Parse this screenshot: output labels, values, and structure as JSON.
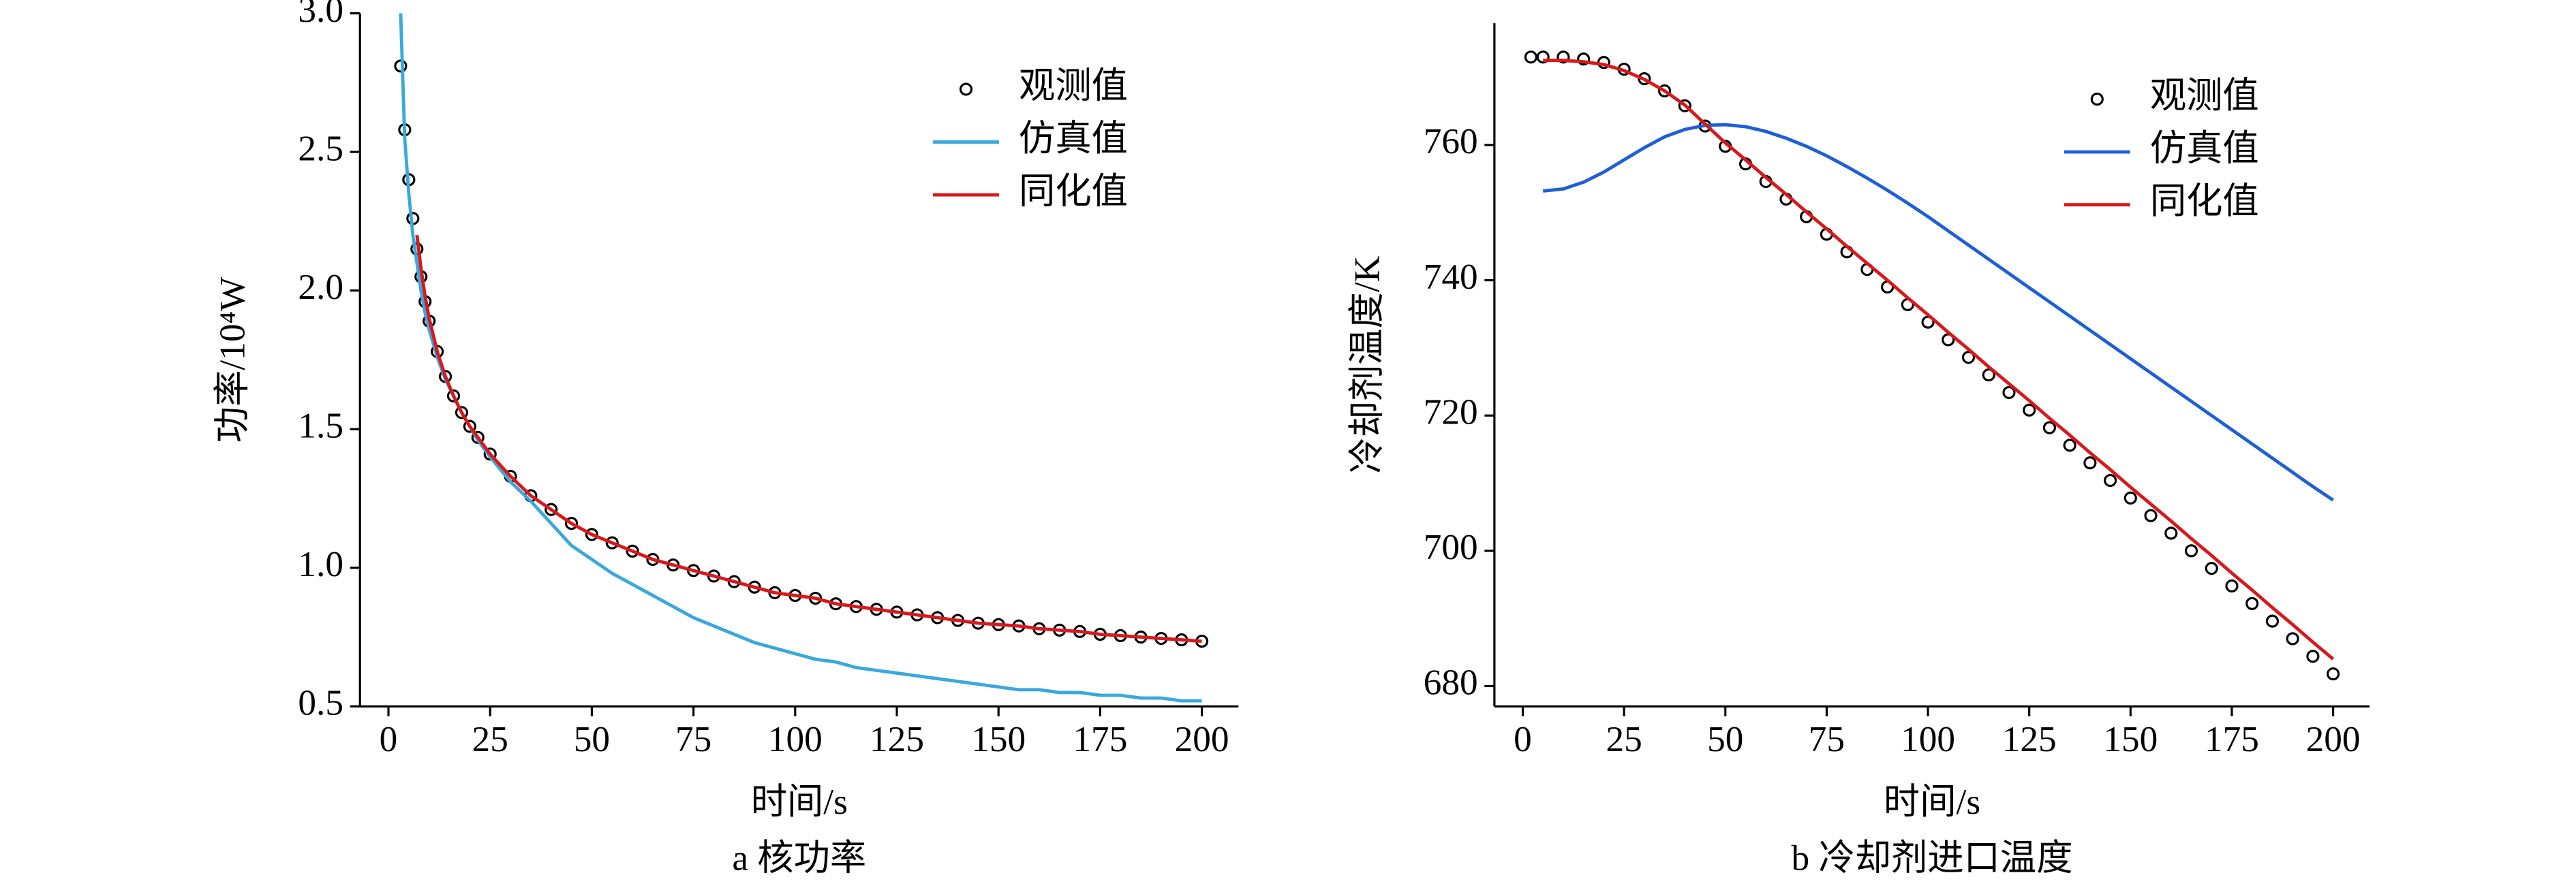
{
  "chart_data": [
    {
      "type": "line",
      "title": "a 核功率",
      "xlabel": "时间/s",
      "ylabel": "功率/10⁴W",
      "x": [
        3,
        4,
        5,
        6,
        7,
        8,
        9,
        10,
        12,
        14,
        16,
        18,
        20,
        22,
        25,
        30,
        35,
        40,
        45,
        50,
        55,
        60,
        65,
        70,
        75,
        80,
        85,
        90,
        95,
        100,
        105,
        110,
        115,
        120,
        125,
        130,
        135,
        140,
        145,
        150,
        155,
        160,
        165,
        170,
        175,
        180,
        185,
        190,
        195,
        200
      ],
      "series": [
        {
          "name": "观测值",
          "color": "#000000",
          "mode": "markers",
          "values": [
            2.81,
            2.58,
            2.4,
            2.26,
            2.15,
            2.05,
            1.96,
            1.89,
            1.78,
            1.69,
            1.62,
            1.56,
            1.51,
            1.47,
            1.41,
            1.33,
            1.26,
            1.21,
            1.16,
            1.12,
            1.09,
            1.06,
            1.03,
            1.01,
            0.99,
            0.97,
            0.95,
            0.93,
            0.91,
            0.9,
            0.89,
            0.87,
            0.86,
            0.85,
            0.84,
            0.83,
            0.82,
            0.81,
            0.8,
            0.795,
            0.79,
            0.78,
            0.775,
            0.77,
            0.76,
            0.755,
            0.75,
            0.745,
            0.74,
            0.735
          ]
        },
        {
          "name": "仿真值",
          "color": "#3aa8dc",
          "mode": "line",
          "values": [
            3.0,
            2.55,
            2.35,
            2.2,
            2.1,
            2.0,
            1.92,
            1.86,
            1.76,
            1.68,
            1.62,
            1.56,
            1.51,
            1.46,
            1.4,
            1.31,
            1.24,
            1.16,
            1.08,
            1.03,
            0.98,
            0.94,
            0.9,
            0.86,
            0.82,
            0.79,
            0.76,
            0.73,
            0.71,
            0.69,
            0.67,
            0.66,
            0.64,
            0.63,
            0.62,
            0.61,
            0.6,
            0.59,
            0.58,
            0.57,
            0.56,
            0.56,
            0.55,
            0.55,
            0.54,
            0.54,
            0.53,
            0.53,
            0.52,
            0.52
          ]
        },
        {
          "name": "同化值",
          "color": "#d7191c",
          "mode": "line",
          "values": [
            null,
            null,
            null,
            null,
            2.2,
            2.08,
            1.98,
            1.9,
            1.78,
            1.69,
            1.62,
            1.56,
            1.51,
            1.47,
            1.41,
            1.33,
            1.26,
            1.21,
            1.16,
            1.12,
            1.09,
            1.06,
            1.03,
            1.01,
            0.99,
            0.97,
            0.95,
            0.93,
            0.91,
            0.9,
            0.89,
            0.87,
            0.86,
            0.85,
            0.84,
            0.83,
            0.82,
            0.81,
            0.8,
            0.795,
            0.79,
            0.78,
            0.775,
            0.77,
            0.76,
            0.755,
            0.75,
            0.745,
            0.74,
            0.735
          ]
        }
      ],
      "xlim": [
        -7,
        209
      ],
      "xticks": [
        0,
        25,
        50,
        75,
        100,
        125,
        150,
        175,
        200
      ],
      "ylim": [
        0.5,
        3.0
      ],
      "yticks": [
        0.5,
        {
          "value": 1,
          "label": "1.0"
        },
        1.5,
        {
          "value": 2,
          "label": "2.0"
        },
        2.5,
        {
          "value": 3,
          "label": "3.0"
        }
      ],
      "legend": "upper right"
    },
    {
      "type": "line",
      "title": "b 冷却剂进口温度",
      "xlabel": "时间/s",
      "ylabel": "冷却剂温度/K",
      "x": [
        2,
        5,
        10,
        15,
        20,
        25,
        30,
        35,
        40,
        45,
        50,
        55,
        60,
        65,
        70,
        75,
        80,
        85,
        90,
        95,
        100,
        105,
        110,
        115,
        120,
        125,
        130,
        135,
        140,
        145,
        150,
        155,
        160,
        165,
        170,
        175,
        180,
        185,
        190,
        195,
        200
      ],
      "series": [
        {
          "name": "观测值",
          "color": "#000000",
          "mode": "markers",
          "values": [
            773,
            773,
            773,
            772.7,
            772.2,
            771.2,
            769.8,
            768,
            765.8,
            762.8,
            759.8,
            757.2,
            754.6,
            752,
            749.4,
            746.8,
            744.2,
            741.6,
            739,
            736.4,
            733.8,
            731.2,
            728.6,
            726,
            723.4,
            720.8,
            718.2,
            715.6,
            713,
            710.4,
            707.8,
            705.2,
            702.6,
            700,
            697.4,
            694.8,
            692.2,
            689.6,
            687,
            684.4,
            681.8
          ]
        },
        {
          "name": "仿真值",
          "color": "#1f5fd6",
          "mode": "line",
          "values": [
            null,
            753.2,
            753.5,
            754.5,
            756,
            757.8,
            759.6,
            761.2,
            762.3,
            762.9,
            763,
            762.7,
            762,
            761,
            759.8,
            758.4,
            756.8,
            755.1,
            753.3,
            751.4,
            749.4,
            747.3,
            745.2,
            743.1,
            741,
            738.9,
            736.8,
            734.7,
            732.6,
            730.5,
            728.4,
            726.3,
            724.2,
            722.1,
            720,
            717.9,
            715.8,
            713.7,
            711.6,
            709.5,
            707.5
          ]
        },
        {
          "name": "同化值",
          "color": "#d7191c",
          "mode": "line",
          "values": [
            null,
            772.5,
            772.5,
            772.3,
            771.9,
            771,
            769.7,
            768,
            765.9,
            763.1,
            760.3,
            757.8,
            755.2,
            752.7,
            750.1,
            747.6,
            745,
            742.5,
            740,
            737.4,
            734.9,
            732.3,
            729.8,
            727.2,
            724.7,
            722.2,
            719.6,
            717.1,
            714.5,
            712,
            709.4,
            706.9,
            704.4,
            701.8,
            699.3,
            696.7,
            694.2,
            691.6,
            689.1,
            686.5,
            684
          ]
        }
      ],
      "xlim": [
        -7,
        209
      ],
      "xticks": [
        0,
        25,
        50,
        75,
        100,
        125,
        150,
        175,
        200
      ],
      "ylim": [
        677,
        778
      ],
      "yticks": [
        680,
        700,
        720,
        740,
        760
      ],
      "legend": "upper right"
    }
  ]
}
